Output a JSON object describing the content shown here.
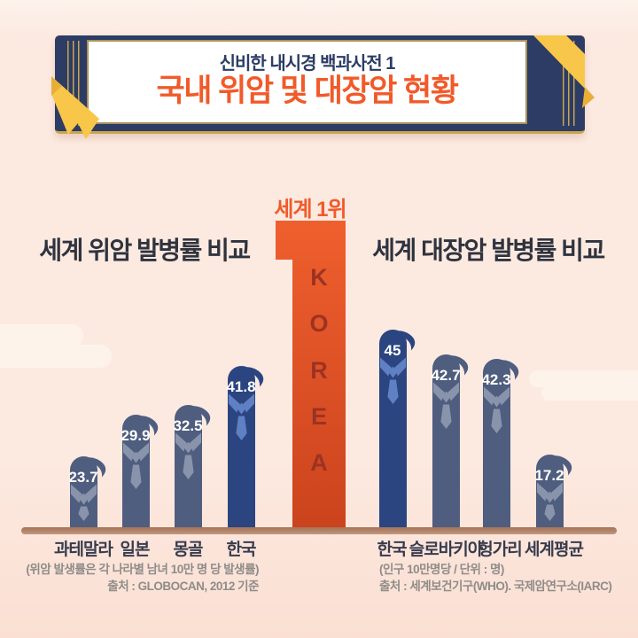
{
  "banner": {
    "subtitle": "신비한 내시경 백과사전 1",
    "title": "국내 위암 및 대장암 현황"
  },
  "center_rank": {
    "rank_label": "세계 1위",
    "numeral": "1",
    "vertical_label": "KOREA"
  },
  "chart_data": [
    {
      "type": "bar",
      "title": "세계 위암 발병률 비교",
      "categories": [
        "과테말라",
        "일본",
        "몽골",
        "한국"
      ],
      "values": [
        23.7,
        29.9,
        32.5,
        41.8
      ],
      "value_labels": [
        "23.7",
        "29.9",
        "32.5",
        "41.8"
      ],
      "highlight_index": 3,
      "highlight_category": "한국",
      "note": "(위암 발생률은 각 나라별 남녀 10만 명 당 발생률)",
      "source": "출처 : GLOBOCAN, 2012 기준",
      "ylim": [
        0,
        50
      ],
      "legend": "none",
      "grid": "off"
    },
    {
      "type": "bar",
      "title": "세계 대장암 발병률 비교",
      "categories": [
        "한국",
        "슬로바키아",
        "헝가리",
        "세계평균"
      ],
      "values": [
        45,
        42.7,
        42.3,
        17.2
      ],
      "value_labels": [
        "45",
        "42.7",
        "42.3",
        "17.2"
      ],
      "highlight_index": 0,
      "highlight_category": "한국",
      "note": "(인구 10만명당 / 단위 : 명)",
      "source": "출처 : 세계보건기구(WHO). 국제암연구소(IARC)",
      "ylim": [
        0,
        50
      ],
      "legend": "none",
      "grid": "off"
    }
  ],
  "colors": {
    "background": "#fceae1",
    "background_top": "#fdf2ec",
    "background_bottom": "#fbdfd3",
    "cloud": "#fdf3eb",
    "banner_navy": "#2c3c64",
    "banner_gold": "#c9a54e",
    "panel_border": "#a8925a",
    "ribbon_yellow": "#f8c648",
    "ribbon_fold": "#e8ae38",
    "accent_orange": "#f15a29",
    "numeral_top": "#ef5f2e",
    "numeral_bottom": "#cb431d",
    "korea_letter": "#9c3322",
    "bar_slate": "#4f5d7e",
    "bar_slate_trim": "#8994ac",
    "bar_korea": "#2b4581",
    "bar_korea_trim": "#6080c4",
    "value_white": "#ffffff",
    "label_dark": "#373c4e",
    "footnote_gray": "#8f8c89",
    "baseline_brown": "#b2846a",
    "baseline_dark": "#a5755a",
    "baseline_light": "#c39a81",
    "title_dark": "#2f333e"
  }
}
